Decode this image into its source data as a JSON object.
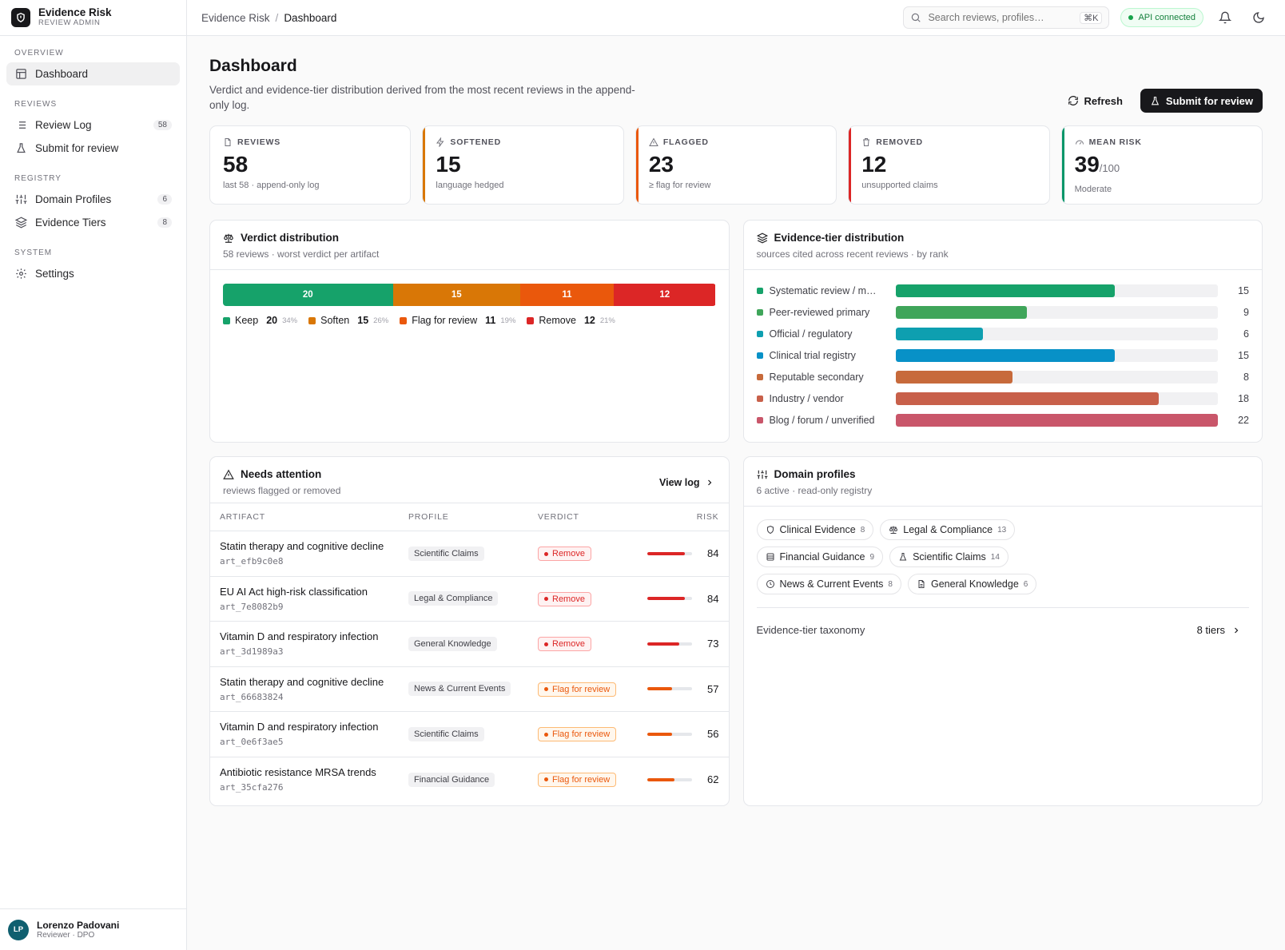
{
  "brand": {
    "name": "Evidence Risk",
    "sub": "REVIEW ADMIN"
  },
  "sidebar": {
    "sections": [
      {
        "title": "OVERVIEW",
        "items": [
          {
            "label": "Dashboard",
            "icon": "layout-icon",
            "active": true
          }
        ]
      },
      {
        "title": "REVIEWS",
        "items": [
          {
            "label": "Review Log",
            "icon": "list-icon",
            "count": "58"
          },
          {
            "label": "Submit for review",
            "icon": "flask-icon"
          }
        ]
      },
      {
        "title": "REGISTRY",
        "items": [
          {
            "label": "Domain Profiles",
            "icon": "sliders-icon",
            "count": "6"
          },
          {
            "label": "Evidence Tiers",
            "icon": "layers-icon",
            "count": "8"
          }
        ]
      },
      {
        "title": "SYSTEM",
        "items": [
          {
            "label": "Settings",
            "icon": "gear-icon"
          }
        ]
      }
    ]
  },
  "user": {
    "initials": "LP",
    "name": "Lorenzo Padovani",
    "role": "Reviewer · DPO"
  },
  "header": {
    "breadcrumb": [
      "Evidence Risk",
      "Dashboard"
    ],
    "search_placeholder": "Search reviews, profiles…",
    "search_kbd": "⌘K",
    "api_status": "API connected"
  },
  "page": {
    "title": "Dashboard",
    "description": "Verdict and evidence-tier distribution derived from the most recent reviews in the append-only log.",
    "refresh_label": "Refresh",
    "submit_label": "Submit for review"
  },
  "stats": [
    {
      "label": "REVIEWS",
      "value": "58",
      "note": "last 58 · append-only log",
      "accent": "",
      "icon": "file-icon"
    },
    {
      "label": "SOFTENED",
      "value": "15",
      "note": "language hedged",
      "accent": "#d97706",
      "icon": "bolt-icon"
    },
    {
      "label": "FLAGGED",
      "value": "23",
      "note": "≥ flag for review",
      "accent": "#ea580c",
      "icon": "warning-icon"
    },
    {
      "label": "REMOVED",
      "value": "12",
      "note": "unsupported claims",
      "accent": "#dc2626",
      "icon": "trash-icon"
    },
    {
      "label": "MEAN RISK",
      "value": "39",
      "value_sub": "/100",
      "note": "Moderate",
      "accent": "#059669",
      "icon": "gauge-icon"
    }
  ],
  "verdict_card": {
    "title": "Verdict distribution",
    "subtitle": "58 reviews · worst verdict per artifact"
  },
  "tier_card": {
    "title": "Evidence-tier distribution",
    "subtitle": "sources cited across recent reviews · by rank"
  },
  "attention_card": {
    "title": "Needs attention",
    "subtitle": "reviews flagged or removed",
    "view_log": "View log"
  },
  "domain_card": {
    "title": "Domain profiles",
    "subtitle": "6 active · read-only registry",
    "taxonomy_label": "Evidence-tier taxonomy",
    "taxonomy_count": "8 tiers"
  },
  "chart_data": [
    {
      "type": "bar",
      "stacked": true,
      "orientation": "horizontal",
      "categories": [
        "Keep",
        "Soften",
        "Flag for review",
        "Remove"
      ],
      "values": [
        20,
        15,
        11,
        12
      ],
      "percents": [
        "34%",
        "26%",
        "19%",
        "21%"
      ],
      "colors": [
        "#16a26a",
        "#d97706",
        "#ea580c",
        "#dc2626"
      ]
    },
    {
      "type": "bar",
      "orientation": "horizontal",
      "categories": [
        "Systematic review / m…",
        "Peer-reviewed primary",
        "Official / regulatory",
        "Clinical trial registry",
        "Reputable secondary",
        "Industry / vendor",
        "Blog / forum / unverified"
      ],
      "values": [
        15,
        9,
        6,
        15,
        8,
        18,
        22
      ],
      "xlim": [
        0,
        22
      ],
      "colors": [
        "#16a26a",
        "#3fa55a",
        "#0e9fb0",
        "#0891c7",
        "#c76a3b",
        "#c8604a",
        "#c9566a"
      ]
    }
  ],
  "attention": {
    "columns": [
      "ARTIFACT",
      "PROFILE",
      "VERDICT",
      "RISK"
    ],
    "rows": [
      {
        "title": "Statin therapy and cognitive decline",
        "id": "art_efb9c0e8",
        "profile": "Scientific Claims",
        "verdict": "Remove",
        "kind": "remove",
        "risk": 84
      },
      {
        "title": "EU AI Act high-risk classification",
        "id": "art_7e8082b9",
        "profile": "Legal & Compliance",
        "verdict": "Remove",
        "kind": "remove",
        "risk": 84
      },
      {
        "title": "Vitamin D and respiratory infection",
        "id": "art_3d1989a3",
        "profile": "General Knowledge",
        "verdict": "Remove",
        "kind": "remove",
        "risk": 73
      },
      {
        "title": "Statin therapy and cognitive decline",
        "id": "art_66683824",
        "profile": "News & Current Events",
        "verdict": "Flag for review",
        "kind": "flag",
        "risk": 57
      },
      {
        "title": "Vitamin D and respiratory infection",
        "id": "art_0e6f3ae5",
        "profile": "Scientific Claims",
        "verdict": "Flag for review",
        "kind": "flag",
        "risk": 56
      },
      {
        "title": "Antibiotic resistance MRSA trends",
        "id": "art_35cfa276",
        "profile": "Financial Guidance",
        "verdict": "Flag for review",
        "kind": "flag",
        "risk": 62
      }
    ]
  },
  "domains": [
    {
      "label": "Clinical Evidence",
      "count": "8",
      "icon": "shield-icon"
    },
    {
      "label": "Legal & Compliance",
      "count": "13",
      "icon": "scale-icon"
    },
    {
      "label": "Financial Guidance",
      "count": "9",
      "icon": "database-icon"
    },
    {
      "label": "Scientific Claims",
      "count": "14",
      "icon": "flask-icon"
    },
    {
      "label": "News & Current Events",
      "count": "8",
      "icon": "clock-icon"
    },
    {
      "label": "General Knowledge",
      "count": "6",
      "icon": "document-icon"
    }
  ]
}
